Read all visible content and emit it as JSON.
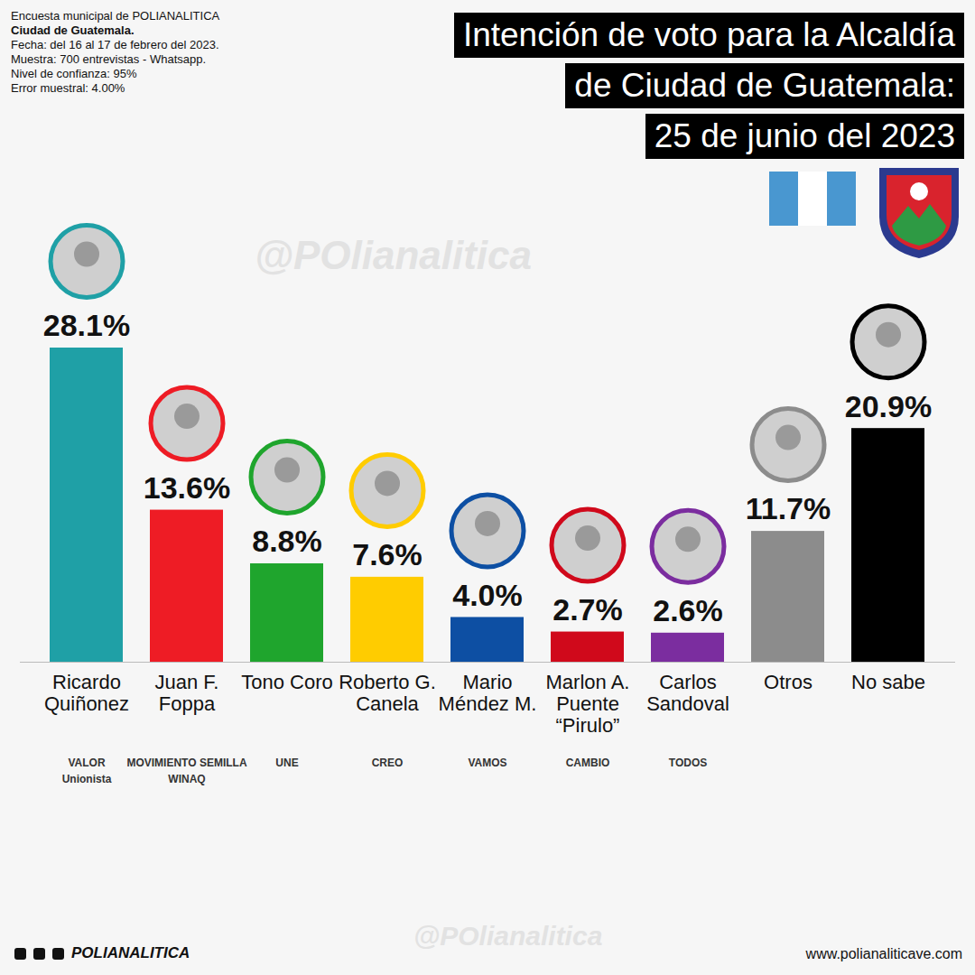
{
  "chart_data": {
    "type": "bar",
    "title": [
      "Intención de voto para la Alcaldía",
      "de Ciudad de Guatemala:",
      "25 de junio del 2023"
    ],
    "notes": [
      "Encuesta municipal de POLIANALITICA",
      "Ciudad de Guatemala.",
      "Fecha: del 16 al 17 de febrero del 2023.",
      "Muestra: 700 entrevistas - Whatsapp.",
      "Nivel de confianza: 95%",
      "Error muestral: 4.00%"
    ],
    "categories": [
      "Ricardo Quiñonez",
      "Juan F. Foppa",
      "Tono Coro",
      "Roberto G. Canela",
      "Mario Méndez M.",
      "Marlon A. Puente “Pirulo”",
      "Carlos Sandoval",
      "Otros",
      "No sabe"
    ],
    "values": [
      28.1,
      13.6,
      8.8,
      7.6,
      4.0,
      2.7,
      2.6,
      11.7,
      20.9
    ],
    "value_labels": [
      "28.1%",
      "13.6%",
      "8.8%",
      "7.6%",
      "4.0%",
      "2.7%",
      "2.6%",
      "11.7%",
      "20.9%"
    ],
    "colors": [
      "#1fa0a6",
      "#ee1c25",
      "#1fa52d",
      "#ffcc00",
      "#0d4fa3",
      "#d0091b",
      "#7b2d9f",
      "#8c8c8c",
      "#000000"
    ],
    "parties": [
      [
        "VALOR",
        "Unionista"
      ],
      [
        "MOVIMIENTO SEMILLA",
        "WINAQ"
      ],
      [
        "UNE"
      ],
      [
        "CREO"
      ],
      [
        "VAMOS"
      ],
      [
        "CAMBIO"
      ],
      [
        "TODOS"
      ],
      [],
      []
    ],
    "ylim": [
      0,
      28.1
    ],
    "yticks": [],
    "grid": false,
    "data_labels": true,
    "tick_labels": "x",
    "watermark": "@POlianalitica",
    "footer_left": "POLIANALITICA",
    "footer_right": "www.polianaliticave.com"
  }
}
